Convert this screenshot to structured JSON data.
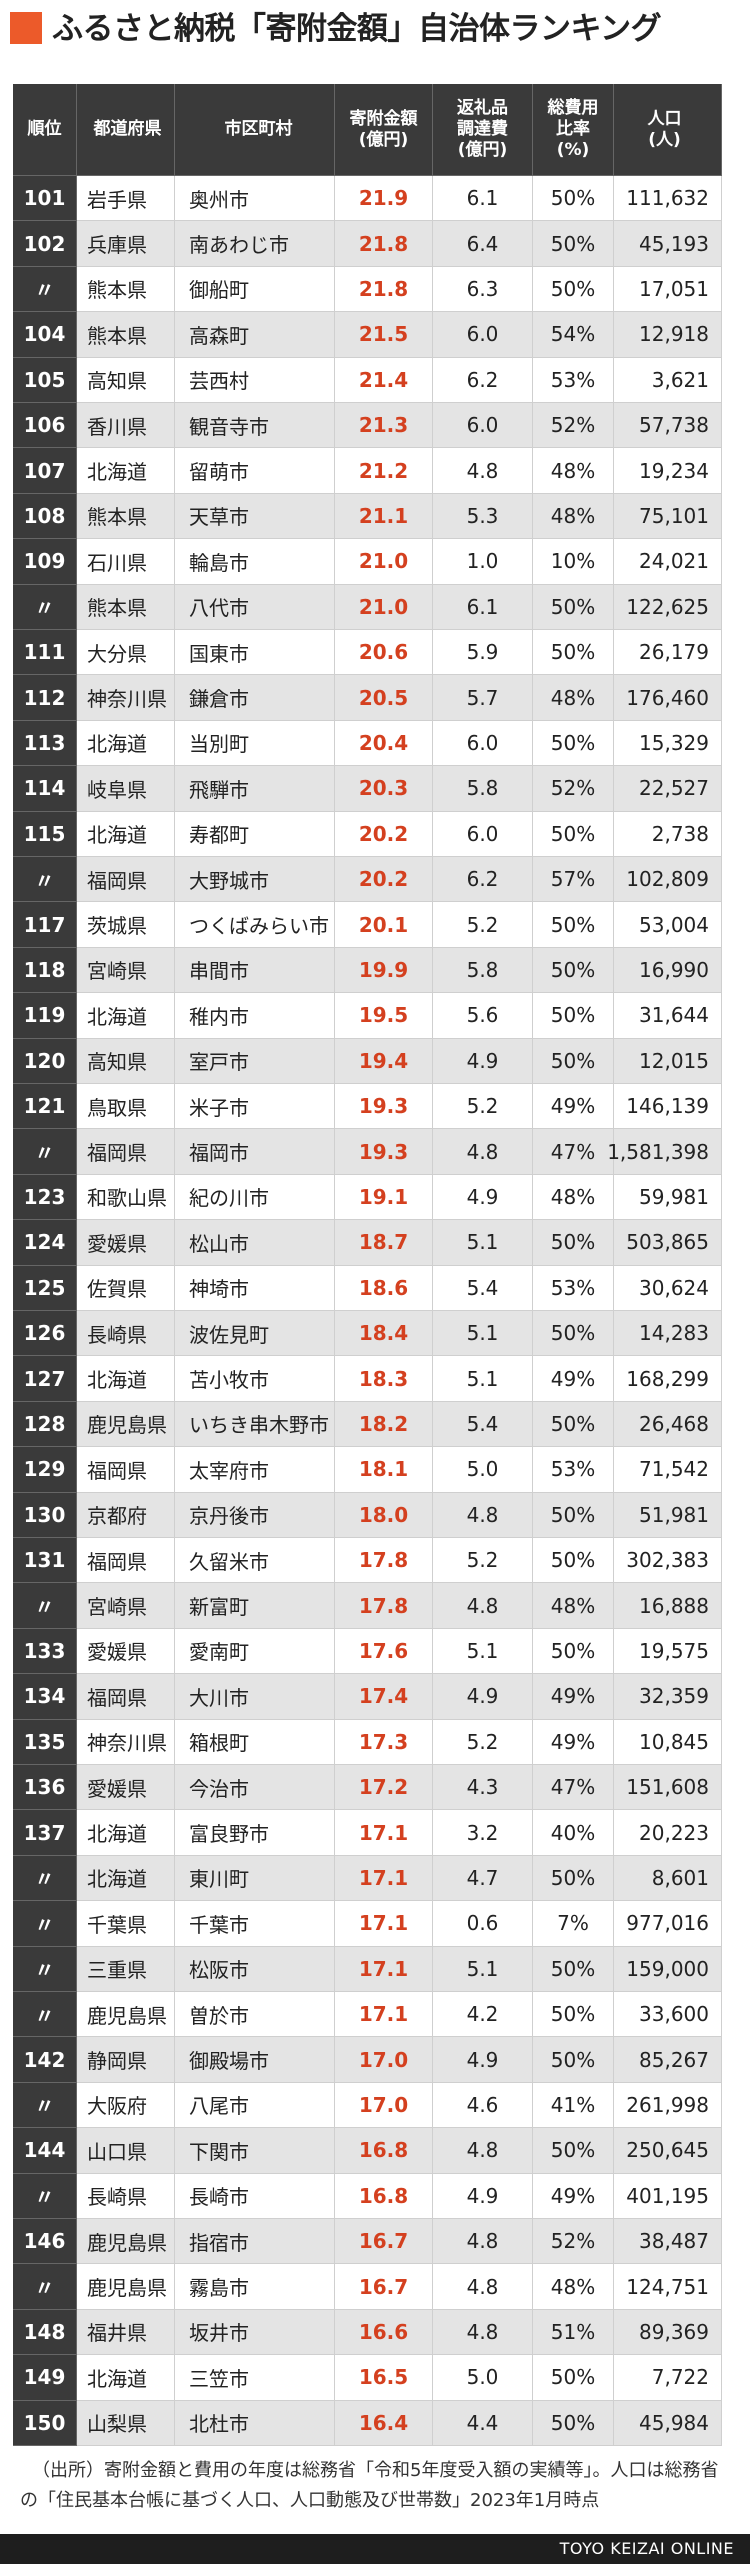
{
  "header": {
    "title": "ふるさと納税「寄附金額」自治体ランキング"
  },
  "table": {
    "columns": [
      [
        "順位"
      ],
      [
        "都道府県"
      ],
      [
        "市区町村"
      ],
      [
        "寄附金額",
        "(億円)"
      ],
      [
        "返礼品",
        "調達費",
        "(億円)"
      ],
      [
        "総費用",
        "比率",
        "(%)"
      ],
      [
        "人口",
        "(人)"
      ]
    ],
    "rows": [
      [
        "101",
        "岩手県",
        "奥州市",
        "21.9",
        "6.1",
        "50%",
        "111,632"
      ],
      [
        "102",
        "兵庫県",
        "南あわじ市",
        "21.8",
        "6.4",
        "50%",
        "45,193"
      ],
      [
        "〃",
        "熊本県",
        "御船町",
        "21.8",
        "6.3",
        "50%",
        "17,051"
      ],
      [
        "104",
        "熊本県",
        "高森町",
        "21.5",
        "6.0",
        "54%",
        "12,918"
      ],
      [
        "105",
        "高知県",
        "芸西村",
        "21.4",
        "6.2",
        "53%",
        "3,621"
      ],
      [
        "106",
        "香川県",
        "観音寺市",
        "21.3",
        "6.0",
        "52%",
        "57,738"
      ],
      [
        "107",
        "北海道",
        "留萌市",
        "21.2",
        "4.8",
        "48%",
        "19,234"
      ],
      [
        "108",
        "熊本県",
        "天草市",
        "21.1",
        "5.3",
        "48%",
        "75,101"
      ],
      [
        "109",
        "石川県",
        "輪島市",
        "21.0",
        "1.0",
        "10%",
        "24,021"
      ],
      [
        "〃",
        "熊本県",
        "八代市",
        "21.0",
        "6.1",
        "50%",
        "122,625"
      ],
      [
        "111",
        "大分県",
        "国東市",
        "20.6",
        "5.9",
        "50%",
        "26,179"
      ],
      [
        "112",
        "神奈川県",
        "鎌倉市",
        "20.5",
        "5.7",
        "48%",
        "176,460"
      ],
      [
        "113",
        "北海道",
        "当別町",
        "20.4",
        "6.0",
        "50%",
        "15,329"
      ],
      [
        "114",
        "岐阜県",
        "飛騨市",
        "20.3",
        "5.8",
        "52%",
        "22,527"
      ],
      [
        "115",
        "北海道",
        "寿都町",
        "20.2",
        "6.0",
        "50%",
        "2,738"
      ],
      [
        "〃",
        "福岡県",
        "大野城市",
        "20.2",
        "6.2",
        "57%",
        "102,809"
      ],
      [
        "117",
        "茨城県",
        "つくばみらい市",
        "20.1",
        "5.2",
        "50%",
        "53,004"
      ],
      [
        "118",
        "宮崎県",
        "串間市",
        "19.9",
        "5.8",
        "50%",
        "16,990"
      ],
      [
        "119",
        "北海道",
        "稚内市",
        "19.5",
        "5.6",
        "50%",
        "31,644"
      ],
      [
        "120",
        "高知県",
        "室戸市",
        "19.4",
        "4.9",
        "50%",
        "12,015"
      ],
      [
        "121",
        "鳥取県",
        "米子市",
        "19.3",
        "5.2",
        "49%",
        "146,139"
      ],
      [
        "〃",
        "福岡県",
        "福岡市",
        "19.3",
        "4.8",
        "47%",
        "1,581,398"
      ],
      [
        "123",
        "和歌山県",
        "紀の川市",
        "19.1",
        "4.9",
        "48%",
        "59,981"
      ],
      [
        "124",
        "愛媛県",
        "松山市",
        "18.7",
        "5.1",
        "50%",
        "503,865"
      ],
      [
        "125",
        "佐賀県",
        "神埼市",
        "18.6",
        "5.4",
        "53%",
        "30,624"
      ],
      [
        "126",
        "長崎県",
        "波佐見町",
        "18.4",
        "5.1",
        "50%",
        "14,283"
      ],
      [
        "127",
        "北海道",
        "苫小牧市",
        "18.3",
        "5.1",
        "49%",
        "168,299"
      ],
      [
        "128",
        "鹿児島県",
        "いちき串木野市",
        "18.2",
        "5.4",
        "50%",
        "26,468"
      ],
      [
        "129",
        "福岡県",
        "太宰府市",
        "18.1",
        "5.0",
        "53%",
        "71,542"
      ],
      [
        "130",
        "京都府",
        "京丹後市",
        "18.0",
        "4.8",
        "50%",
        "51,981"
      ],
      [
        "131",
        "福岡県",
        "久留米市",
        "17.8",
        "5.2",
        "50%",
        "302,383"
      ],
      [
        "〃",
        "宮崎県",
        "新富町",
        "17.8",
        "4.8",
        "48%",
        "16,888"
      ],
      [
        "133",
        "愛媛県",
        "愛南町",
        "17.6",
        "5.1",
        "50%",
        "19,575"
      ],
      [
        "134",
        "福岡県",
        "大川市",
        "17.4",
        "4.9",
        "49%",
        "32,359"
      ],
      [
        "135",
        "神奈川県",
        "箱根町",
        "17.3",
        "5.2",
        "49%",
        "10,845"
      ],
      [
        "136",
        "愛媛県",
        "今治市",
        "17.2",
        "4.3",
        "47%",
        "151,608"
      ],
      [
        "137",
        "北海道",
        "富良野市",
        "17.1",
        "3.2",
        "40%",
        "20,223"
      ],
      [
        "〃",
        "北海道",
        "東川町",
        "17.1",
        "4.7",
        "50%",
        "8,601"
      ],
      [
        "〃",
        "千葉県",
        "千葉市",
        "17.1",
        "0.6",
        "7%",
        "977,016"
      ],
      [
        "〃",
        "三重県",
        "松阪市",
        "17.1",
        "5.1",
        "50%",
        "159,000"
      ],
      [
        "〃",
        "鹿児島県",
        "曽於市",
        "17.1",
        "4.2",
        "50%",
        "33,600"
      ],
      [
        "142",
        "静岡県",
        "御殿場市",
        "17.0",
        "4.9",
        "50%",
        "85,267"
      ],
      [
        "〃",
        "大阪府",
        "八尾市",
        "17.0",
        "4.6",
        "41%",
        "261,998"
      ],
      [
        "144",
        "山口県",
        "下関市",
        "16.8",
        "4.8",
        "50%",
        "250,645"
      ],
      [
        "〃",
        "長崎県",
        "長崎市",
        "16.8",
        "4.9",
        "49%",
        "401,195"
      ],
      [
        "146",
        "鹿児島県",
        "指宿市",
        "16.7",
        "4.8",
        "52%",
        "38,487"
      ],
      [
        "〃",
        "鹿児島県",
        "霧島市",
        "16.7",
        "4.8",
        "48%",
        "124,751"
      ],
      [
        "148",
        "福井県",
        "坂井市",
        "16.6",
        "4.8",
        "51%",
        "89,369"
      ],
      [
        "149",
        "北海道",
        "三笠市",
        "16.5",
        "5.0",
        "50%",
        "7,722"
      ],
      [
        "150",
        "山梨県",
        "北杜市",
        "16.4",
        "4.4",
        "50%",
        "45,984"
      ]
    ]
  },
  "footnote": "（出所）寄附金額と費用の年度は総務省「令和5年度受入額の実績等」。人口は総務省の「住民基本台帳に基づく人口、人口動態及び世帯数」2023年1月時点",
  "footer": "TOYO KEIZAI ONLINE"
}
